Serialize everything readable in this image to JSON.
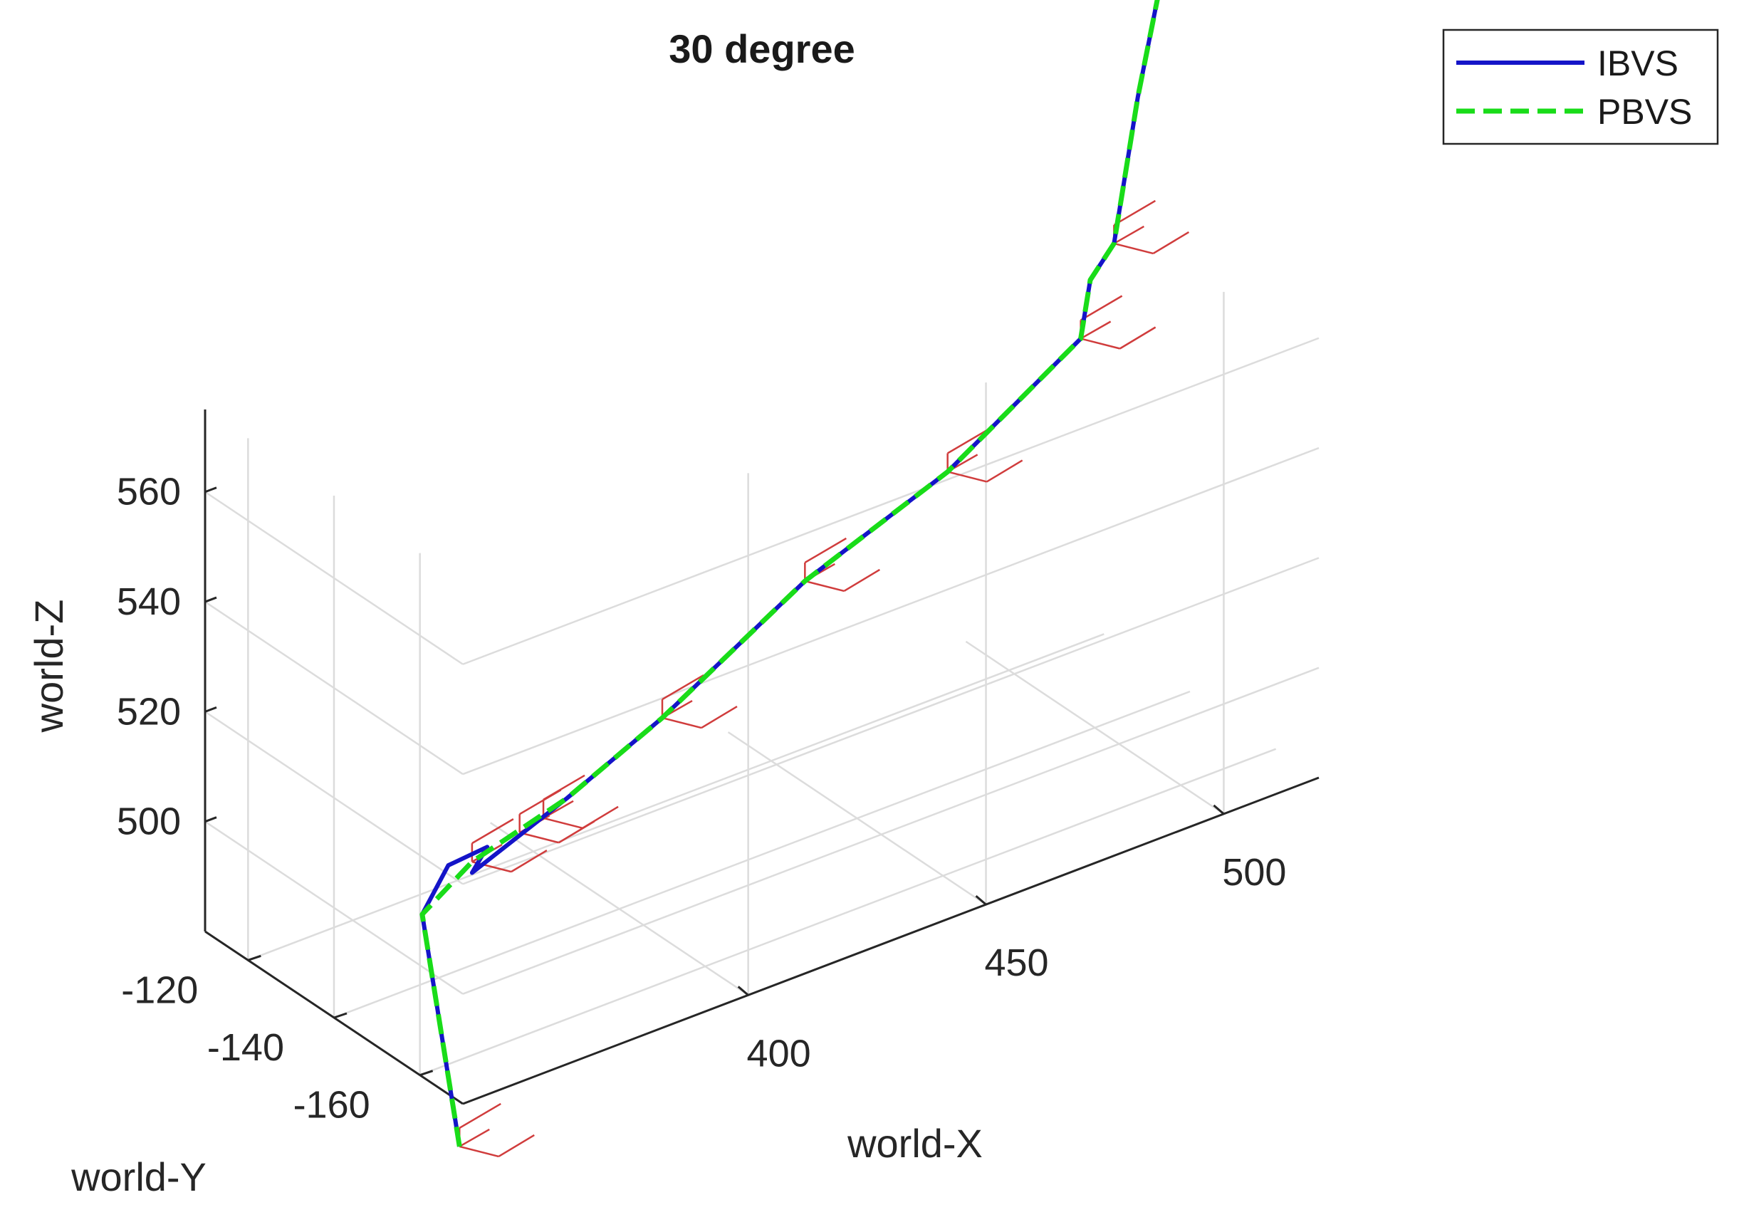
{
  "chart_data": {
    "type": "line3d",
    "title": "30 degree",
    "xlabel": "world-X",
    "ylabel": "world-Y",
    "zlabel": "world-Z",
    "xlim": [
      340,
      520
    ],
    "ylim": [
      -170,
      -110
    ],
    "zlim": [
      480,
      575
    ],
    "x_ticks": [
      400,
      450,
      500
    ],
    "y_ticks": [
      -120,
      -140,
      -160
    ],
    "z_ticks": [
      500,
      520,
      540,
      560
    ],
    "grid": true,
    "legend_position": "top-right",
    "colors": {
      "ibvs": "#1414c8",
      "pbvs": "#19dc19",
      "camera_frames": "#d03c3c"
    },
    "series": [
      {
        "name": "IBVS",
        "style": "solid",
        "points": [
          [
            342,
            -167,
            470
          ],
          [
            345,
            -155,
            505
          ],
          [
            355,
            -150,
            508
          ],
          [
            365,
            -148,
            507
          ],
          [
            360,
            -150,
            505
          ],
          [
            380,
            -150,
            512
          ],
          [
            400,
            -150,
            520
          ],
          [
            430,
            -150,
            535
          ],
          [
            460,
            -150,
            545
          ],
          [
            488,
            -150,
            560
          ],
          [
            490,
            -150,
            570
          ],
          [
            495,
            -150,
            575
          ],
          [
            500,
            -150,
            600
          ],
          [
            505,
            -150,
            620
          ]
        ]
      },
      {
        "name": "PBVS",
        "style": "dashed",
        "points": [
          [
            342,
            -167,
            470
          ],
          [
            345,
            -155,
            505
          ],
          [
            360,
            -150,
            507
          ],
          [
            380,
            -150,
            512
          ],
          [
            400,
            -150,
            520
          ],
          [
            430,
            -150,
            535
          ],
          [
            460,
            -150,
            545
          ],
          [
            488,
            -150,
            560
          ],
          [
            490,
            -150,
            570
          ],
          [
            495,
            -150,
            575
          ],
          [
            500,
            -150,
            600
          ],
          [
            505,
            -150,
            620
          ]
        ]
      }
    ]
  }
}
